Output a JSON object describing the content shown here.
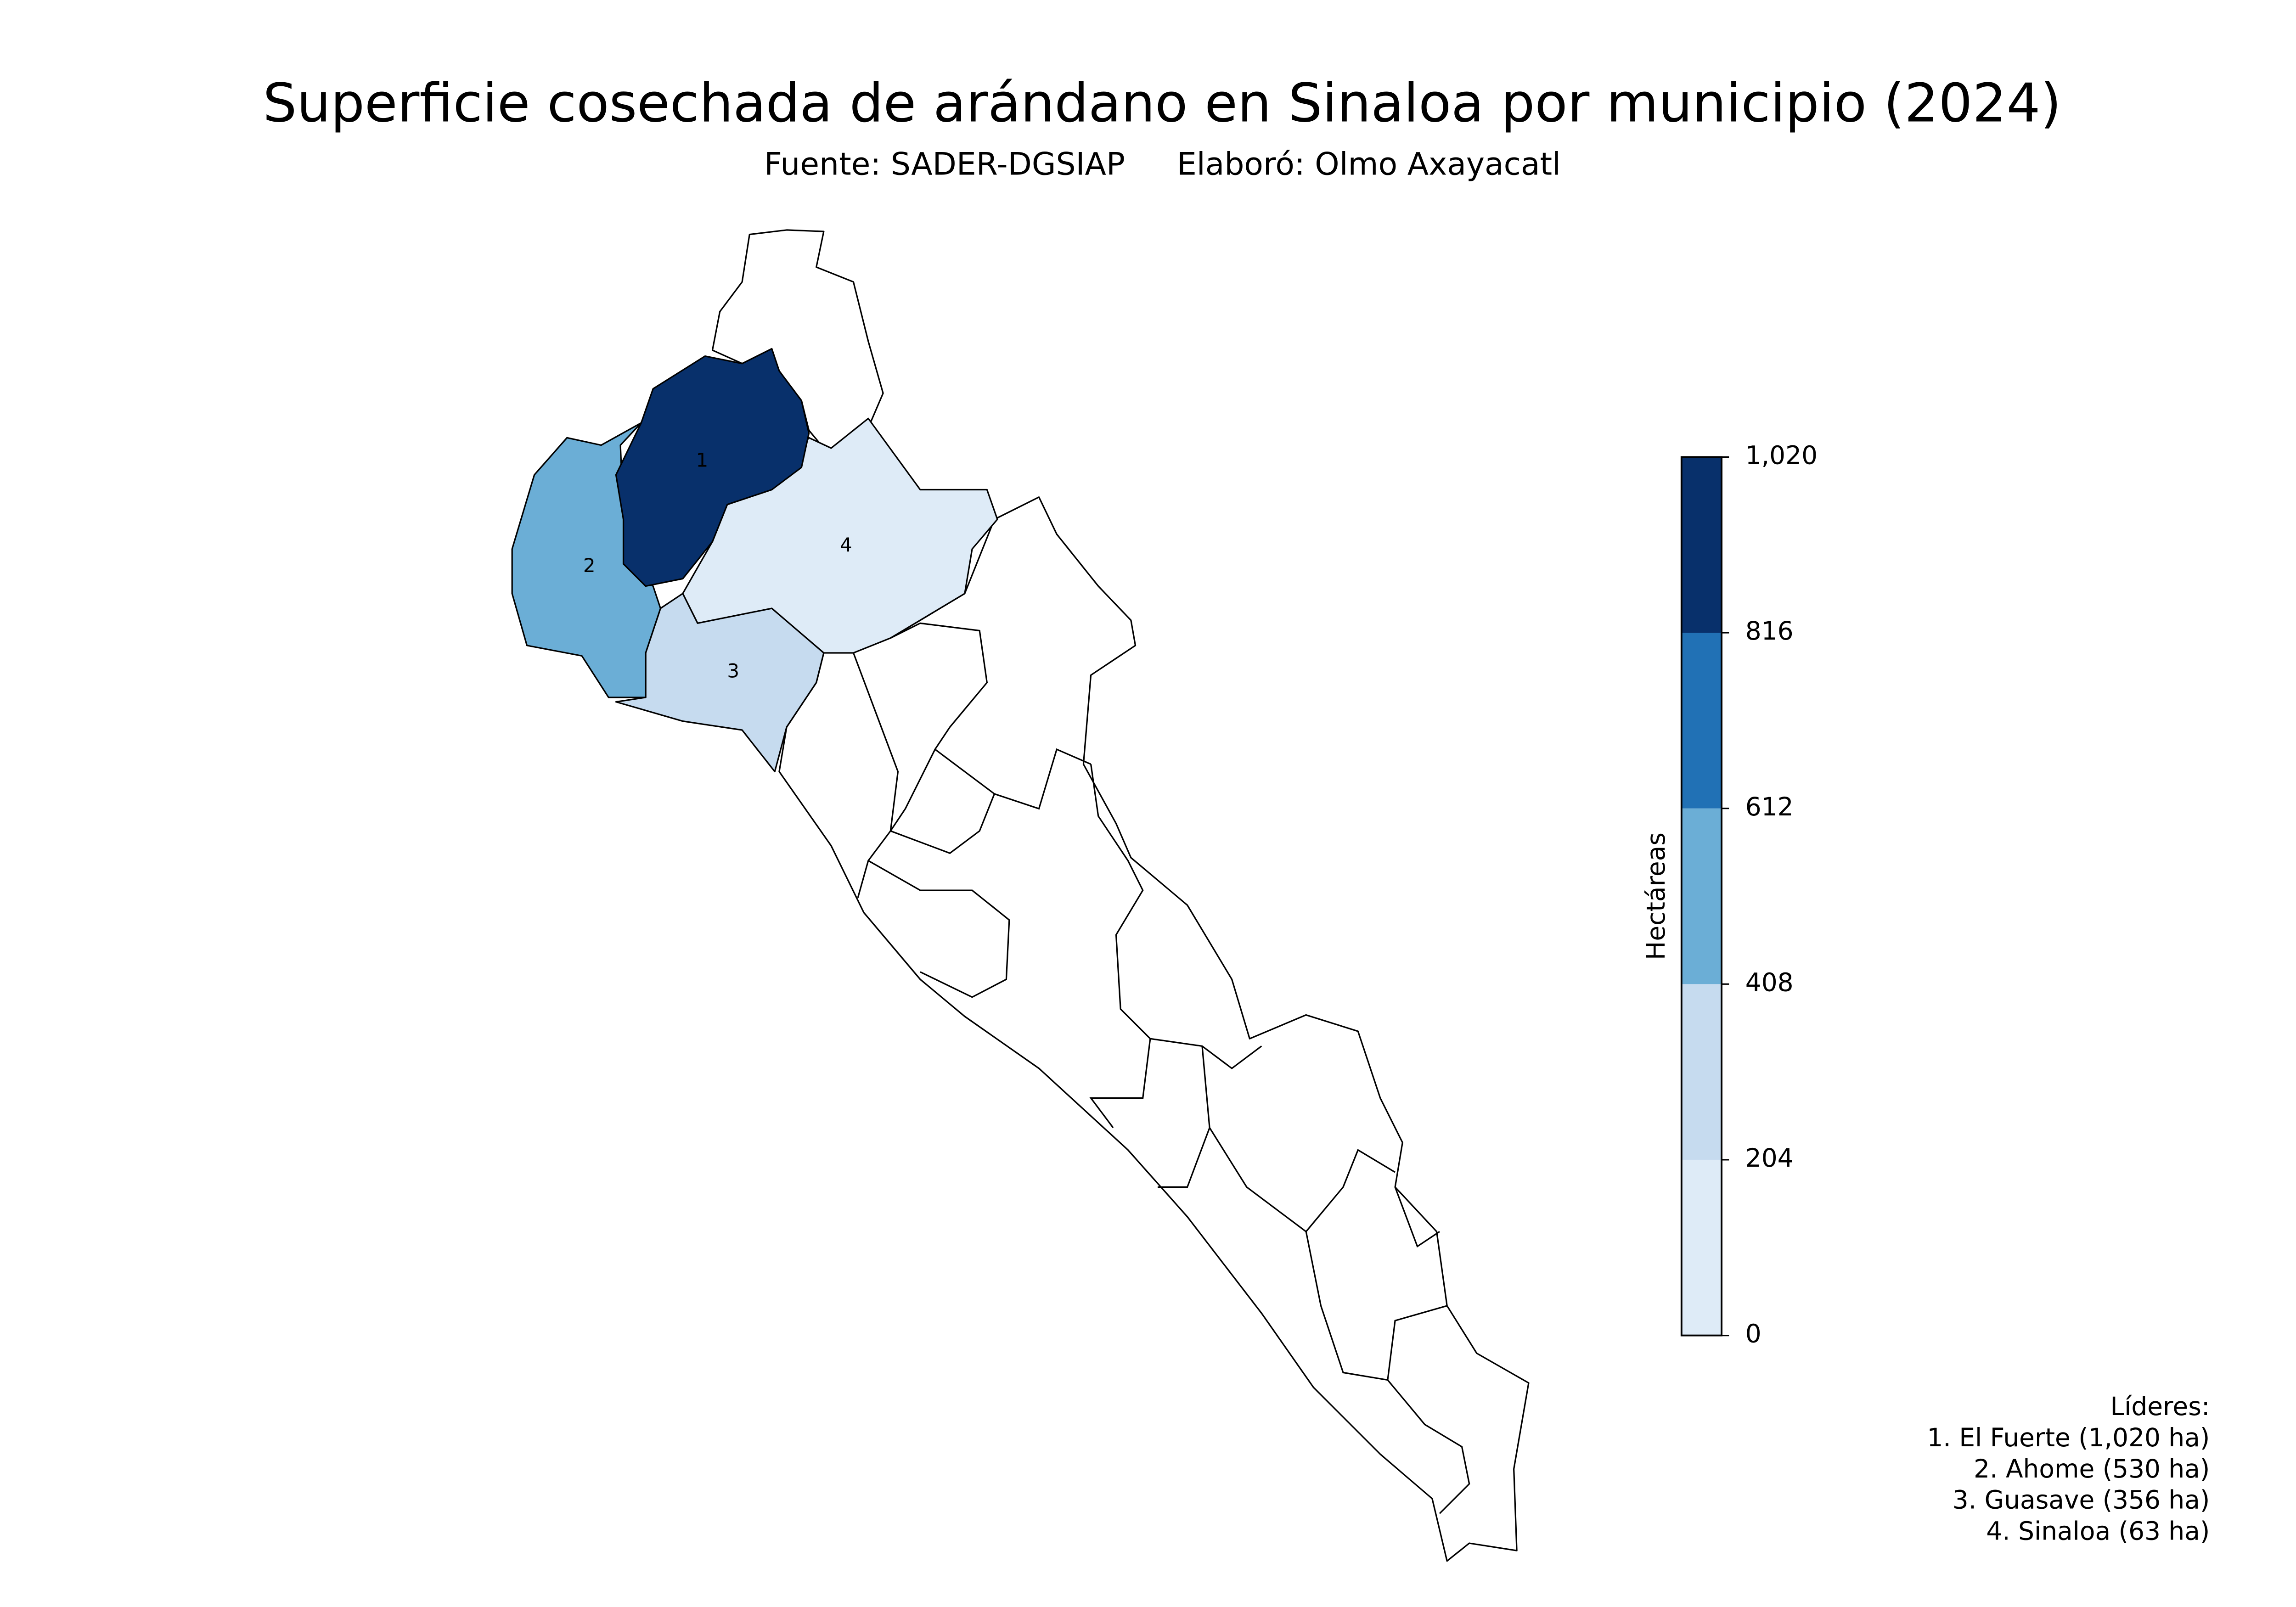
{
  "chart_data": {
    "type": "choropleth",
    "title": "Superficie cosechada de arándano en Sinaloa por municipio (2024)",
    "source": "Fuente: SADER-DGSIAP",
    "author": "Elaboró: Olmo Axayacatl",
    "regions": [
      {
        "label": "1",
        "value": 1020
      },
      {
        "label": "2",
        "value": 530
      },
      {
        "label": "3",
        "value": 356
      },
      {
        "label": "4",
        "value": 63
      }
    ],
    "colorbar": {
      "label": "Hectáreas",
      "clim": [
        0,
        1020
      ],
      "ticks": [
        0,
        204,
        408,
        612,
        816,
        {
          "value": 1020,
          "label": "1,020"
        }
      ],
      "colors": [
        "#deebf7",
        "#c6dbef",
        "#6baed6",
        "#2171b5",
        "#08306b"
      ]
    },
    "leaders": {
      "title": "Líderes:",
      "items": [
        "1. El Fuerte (1,020 ha)",
        "2. Ahome (530 ha)",
        "3. Guasave (356 ha)",
        "4. Sinaloa (63 ha)"
      ]
    }
  }
}
